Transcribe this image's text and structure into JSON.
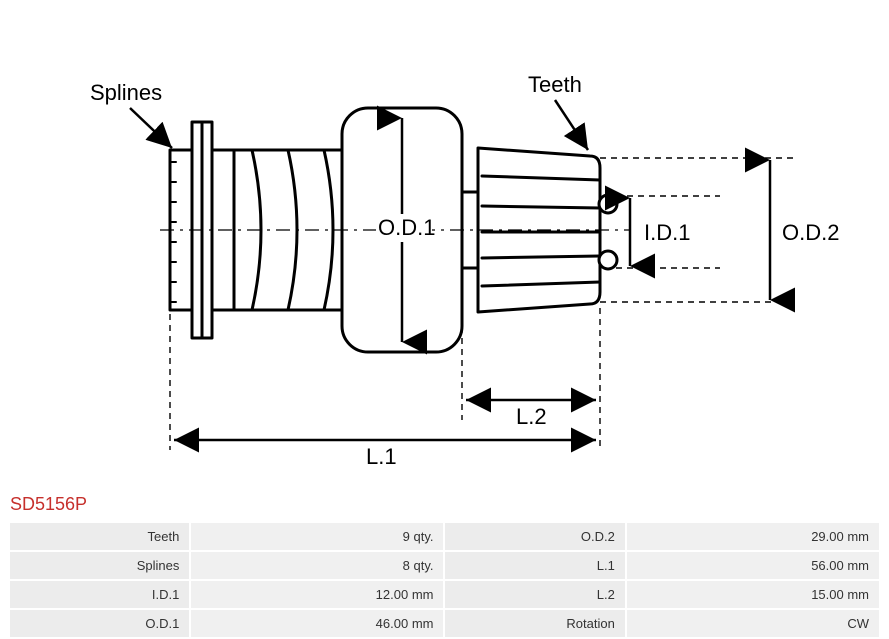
{
  "part_code": "SD5156P",
  "diagram": {
    "labels": {
      "splines": "Splines",
      "teeth": "Teeth",
      "od1": "O.D.1",
      "od2": "O.D.2",
      "id1": "I.D.1",
      "l1": "L.1",
      "l2": "L.2"
    },
    "stroke_color": "#000000",
    "stroke_width_main": 3,
    "stroke_width_thin": 1.5,
    "dash_pattern": "6,5",
    "font_family": "Arial",
    "label_fontsize": 22,
    "dim_fontsize": 22
  },
  "specs": {
    "rows": [
      {
        "label_l": "Teeth",
        "value_l": "9 qty.",
        "label_r": "O.D.2",
        "value_r": "29.00 mm"
      },
      {
        "label_l": "Splines",
        "value_l": "8 qty.",
        "label_r": "L.1",
        "value_r": "56.00 mm"
      },
      {
        "label_l": "I.D.1",
        "value_l": "12.00 mm",
        "label_r": "L.2",
        "value_r": "15.00 mm"
      },
      {
        "label_l": "O.D.1",
        "value_l": "46.00 mm",
        "label_r": "Rotation",
        "value_r": "CW"
      }
    ]
  }
}
